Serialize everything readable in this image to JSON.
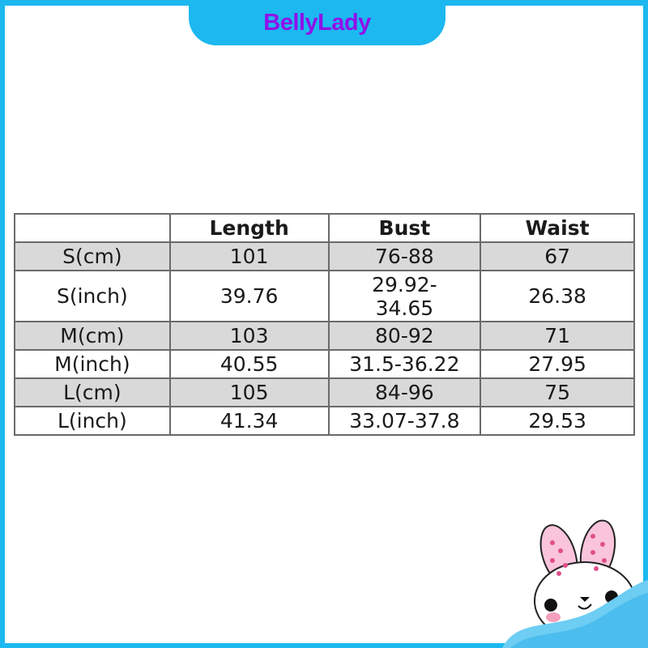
{
  "brand": {
    "name": "BellyLady",
    "color": "#9010e8",
    "frame_color": "#1cb8ef"
  },
  "size_table": {
    "headers": [
      "",
      "Length",
      "Bust",
      "Waist"
    ],
    "rows": [
      {
        "size": "S(cm)",
        "length": "101",
        "bust": "76-88",
        "waist": "67",
        "shaded": true
      },
      {
        "size": "S(inch)",
        "length": "39.76",
        "bust": "29.92-\n34.65",
        "waist": "26.38",
        "shaded": false
      },
      {
        "size": "M(cm)",
        "length": "103",
        "bust": "80-92",
        "waist": "71",
        "shaded": true
      },
      {
        "size": "M(inch)",
        "length": "40.55",
        "bust": "31.5-36.22",
        "waist": "27.95",
        "shaded": false
      },
      {
        "size": "L(cm)",
        "length": "105",
        "bust": "84-96",
        "waist": "75",
        "shaded": true
      },
      {
        "size": "L(inch)",
        "length": "41.34",
        "bust": "33.07-37.8",
        "waist": "29.53",
        "shaded": false
      }
    ]
  },
  "mascot": {
    "icon": "bunny-icon"
  }
}
